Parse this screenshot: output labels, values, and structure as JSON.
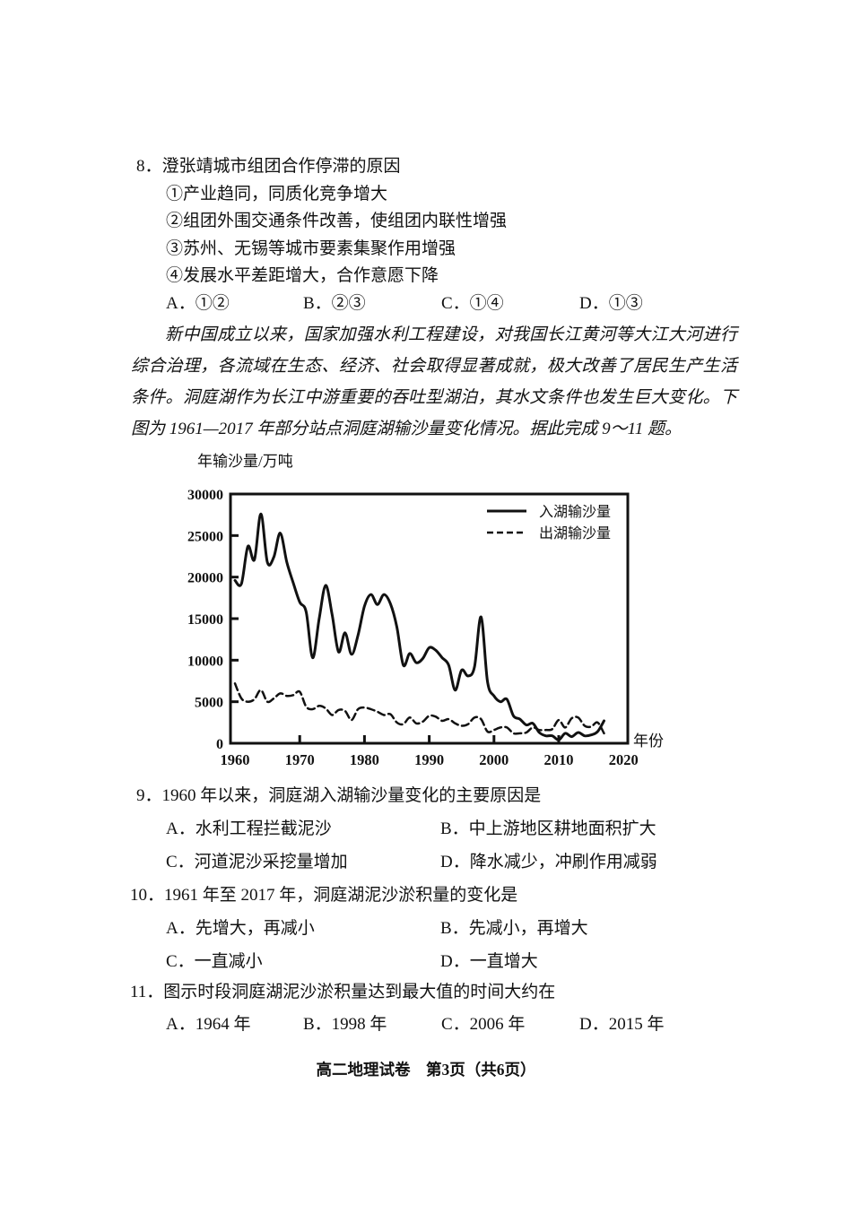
{
  "question8": {
    "number": "8．",
    "stem": "澄张靖城市组团合作停滞的原因",
    "statements": [
      "①产业趋同，同质化竞争增大",
      "②组团外围交通条件改善，使组团内联性增强",
      "③苏州、无锡等城市要素集聚作用增强",
      "④发展水平差距增大，合作意愿下降"
    ],
    "choices": [
      "A．①②",
      "B．②③",
      "C．①④",
      "D．①③"
    ]
  },
  "passage": "新中国成立以来，国家加强水利工程建设，对我国长江黄河等大江大河进行综合治理，各流域在生态、经济、社会取得显著成就，极大改善了居民生产生活条件。洞庭湖作为长江中游重要的吞吐型湖泊，其水文条件也发生巨大变化。下图为 1961—2017 年部分站点洞庭湖输沙量变化情况。据此完成 9～11 题。",
  "chart_data": {
    "type": "line",
    "y_title": "年输沙量/万吨",
    "x_title": "年份",
    "xlim": [
      1960,
      2020
    ],
    "ylim": [
      0,
      30000
    ],
    "x_ticks": [
      1960,
      1970,
      1980,
      1990,
      2000,
      2010,
      2020
    ],
    "y_ticks": [
      0,
      5000,
      10000,
      15000,
      20000,
      25000,
      30000
    ],
    "grid": false,
    "legend_position": "top-right",
    "x": [
      1960,
      1961,
      1962,
      1963,
      1964,
      1965,
      1966,
      1967,
      1968,
      1969,
      1970,
      1971,
      1972,
      1973,
      1974,
      1975,
      1976,
      1977,
      1978,
      1979,
      1980,
      1981,
      1982,
      1983,
      1984,
      1985,
      1986,
      1987,
      1988,
      1989,
      1990,
      1991,
      1992,
      1993,
      1994,
      1995,
      1996,
      1997,
      1998,
      1999,
      2000,
      2001,
      2002,
      2003,
      2004,
      2005,
      2006,
      2007,
      2008,
      2009,
      2010,
      2011,
      2012,
      2013,
      2014,
      2015,
      2016,
      2017
    ],
    "series": [
      {
        "name": "入湖输沙量",
        "style": "solid",
        "values": [
          19600,
          19200,
          23700,
          22100,
          27600,
          21800,
          22400,
          25300,
          21800,
          19300,
          17000,
          15800,
          10300,
          15000,
          19000,
          15500,
          11000,
          13300,
          10700,
          13000,
          16500,
          17900,
          16700,
          17900,
          16800,
          14000,
          9400,
          10800,
          9700,
          10200,
          11500,
          11200,
          10300,
          9400,
          6400,
          8800,
          8100,
          9200,
          15200,
          7400,
          5700,
          5000,
          5300,
          3300,
          2900,
          2200,
          2400,
          1300,
          900,
          900,
          400,
          1200,
          800,
          1300,
          900,
          1000,
          1400,
          2700
        ]
      },
      {
        "name": "出湖输沙量",
        "style": "dashed",
        "values": [
          7200,
          5400,
          5000,
          5300,
          6400,
          5000,
          5400,
          6000,
          5700,
          5800,
          6200,
          4400,
          4100,
          4500,
          4200,
          3400,
          4000,
          3900,
          2800,
          4100,
          4300,
          4100,
          3800,
          3400,
          3500,
          2500,
          2300,
          3100,
          2400,
          2600,
          3300,
          3200,
          2700,
          2900,
          2400,
          2100,
          2300,
          3100,
          2900,
          1400,
          1600,
          1900,
          1900,
          1200,
          1200,
          1300,
          1900,
          1600,
          1600,
          1700,
          2800,
          1900,
          3000,
          3100,
          2100,
          2000,
          2500,
          1200
        ]
      }
    ]
  },
  "question9": {
    "number": "9．",
    "stem": "1960 年以来，洞庭湖入湖输沙量变化的主要原因是",
    "choices": [
      "A．水利工程拦截泥沙",
      "B．中上游地区耕地面积扩大",
      "C．河道泥沙采挖量增加",
      "D．降水减少，冲刷作用减弱"
    ]
  },
  "question10": {
    "number": "10．",
    "stem": "1961 年至 2017 年，洞庭湖泥沙淤积量的变化是",
    "choices": [
      "A．先增大，再减小",
      "B．先减小，再增大",
      "C．一直减小",
      "D．一直增大"
    ]
  },
  "question11": {
    "number": "11．",
    "stem": "图示时段洞庭湖泥沙淤积量达到最大值的时间大约在",
    "choices": [
      "A．1964 年",
      "B．1998 年",
      "C．2006 年",
      "D．2015 年"
    ]
  },
  "footer": {
    "text": "高二地理试卷　第3页（共6页）"
  }
}
